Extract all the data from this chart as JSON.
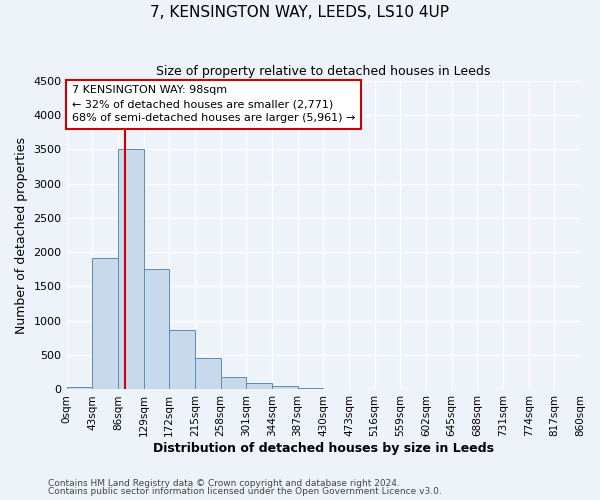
{
  "title": "7, KENSINGTON WAY, LEEDS, LS10 4UP",
  "subtitle": "Size of property relative to detached houses in Leeds",
  "xlabel": "Distribution of detached houses by size in Leeds",
  "ylabel": "Number of detached properties",
  "bar_color": "#c9d9ec",
  "bar_edge_color": "#5b8db8",
  "background_color": "#eef2f9",
  "grid_color": "#ffffff",
  "annotation_box_color": "#cc0000",
  "vline_color": "#cc0000",
  "bin_labels": [
    "0sqm",
    "43sqm",
    "86sqm",
    "129sqm",
    "172sqm",
    "215sqm",
    "258sqm",
    "301sqm",
    "344sqm",
    "387sqm",
    "430sqm",
    "473sqm",
    "516sqm",
    "559sqm",
    "602sqm",
    "645sqm",
    "688sqm",
    "731sqm",
    "774sqm",
    "817sqm",
    "860sqm"
  ],
  "bar_values": [
    30,
    1920,
    3500,
    1760,
    860,
    460,
    175,
    95,
    45,
    20,
    10,
    0,
    0,
    0,
    0,
    0,
    0,
    0,
    0,
    0
  ],
  "bin_edges": [
    0,
    43,
    86,
    129,
    172,
    215,
    258,
    301,
    344,
    387,
    430,
    473,
    516,
    559,
    602,
    645,
    688,
    731,
    774,
    817,
    860
  ],
  "vline_x": 98,
  "ylim": [
    0,
    4500
  ],
  "yticks": [
    0,
    500,
    1000,
    1500,
    2000,
    2500,
    3000,
    3500,
    4000,
    4500
  ],
  "annotation_title": "7 KENSINGTON WAY: 98sqm",
  "annotation_line1": "← 32% of detached houses are smaller (2,771)",
  "annotation_line2": "68% of semi-detached houses are larger (5,961) →",
  "footnote1": "Contains HM Land Registry data © Crown copyright and database right 2024.",
  "footnote2": "Contains public sector information licensed under the Open Government Licence v3.0."
}
